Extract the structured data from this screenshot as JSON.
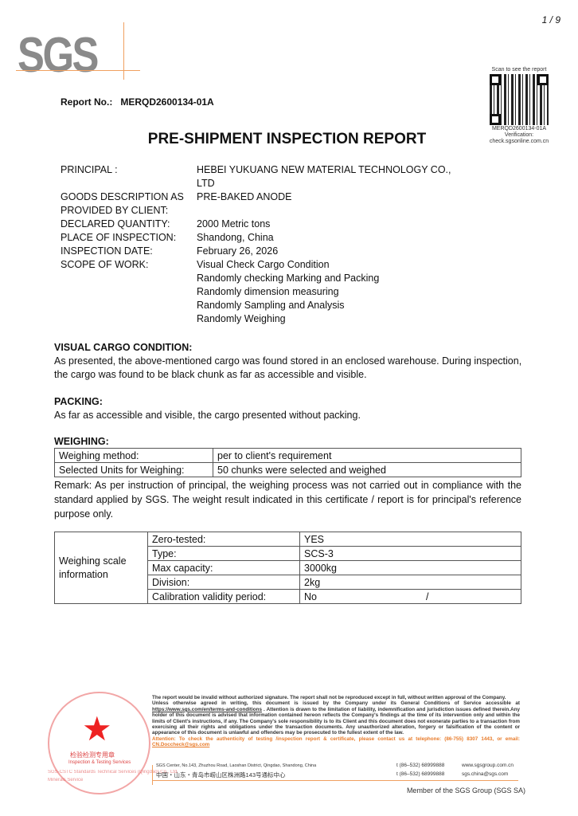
{
  "page_number": "1 / 9",
  "logo": "SGS",
  "report_no": {
    "label": "Report No.:",
    "value": "MERQD2600134-01A"
  },
  "qr": {
    "caption": "Scan to see the report",
    "code": "MERQD2600134-01A",
    "verification": "Verification:",
    "site": "check.sgsonline.com.cn"
  },
  "title": "PRE-SHIPMENT INSPECTION REPORT",
  "info": [
    {
      "label": "PRINCIPAL :",
      "value": "HEBEI YUKUANG NEW MATERIAL TECHNOLOGY CO., LTD"
    },
    {
      "label": "GOODS DESCRIPTION AS PROVIDED BY CLIENT:",
      "value": "PRE-BAKED ANODE"
    },
    {
      "label": "DECLARED QUANTITY:",
      "value": "2000 Metric tons"
    },
    {
      "label": "PLACE OF INSPECTION:",
      "value": "Shandong, China"
    },
    {
      "label": "INSPECTION DATE:",
      "value": "February 26, 2026"
    },
    {
      "label": "SCOPE OF WORK:",
      "value": "Visual Check Cargo Condition"
    },
    {
      "label": "",
      "value": "Randomly checking Marking and Packing"
    },
    {
      "label": "",
      "value": "Randomly dimension measuring"
    },
    {
      "label": "",
      "value": "Randomly Sampling and Analysis"
    },
    {
      "label": "",
      "value": "Randomly Weighing"
    }
  ],
  "visual": {
    "heading": "VISUAL CARGO CONDITION:",
    "text": "As presented, the above-mentioned cargo was found stored in an enclosed warehouse. During inspection, the cargo was found to be black chunk as far as accessible and visible."
  },
  "packing": {
    "heading": "PACKING:",
    "text": "As far as accessible and visible, the cargo presented without packing."
  },
  "weighing": {
    "heading": "WEIGHING:",
    "rows": [
      [
        "Weighing method:",
        "per to client's requirement"
      ],
      [
        "Selected Units for Weighing:",
        "50 chunks were selected and weighed"
      ]
    ],
    "remark": "Remark: As per instruction of principal, the weighing process was not carried out in compliance with the standard applied by SGS. The weight result indicated in this certificate / report is for principal's reference purpose only."
  },
  "scale": {
    "group_label": "Weighing scale information",
    "rows": [
      [
        "Zero-tested:",
        "YES",
        ""
      ],
      [
        "Type:",
        "SCS-3",
        ""
      ],
      [
        "Max capacity:",
        "3000kg",
        ""
      ],
      [
        "Division:",
        "2kg",
        ""
      ],
      [
        "Calibration validity period:",
        "No",
        "/"
      ]
    ]
  },
  "stamp": {
    "text": "通标标准技术服务（青岛）有限公司",
    "sub": "检验检测专用章",
    "en": "Inspection & Testing Services",
    "company": "SGS-CSTC Standards Technical Services (Qingdao) Co., Ltd.",
    "div": "Minerals Service"
  },
  "footer": {
    "disclaimer": "The report would be invalid without authorized signature. The report shall not be reproduced except in full, without written approval of the Company.",
    "conditions_pre": "Unless otherwise agreed in writing, this document is issued by the Company under its General Conditions of Service accessible at",
    "link": "https://www.sgs.com/en/terms-and-conditions",
    "conditions_post": ". Attention is drawn to the limitation of liability, indemnification and jurisdiction issues defined therein.Any holder of this document is advised that information contained hereon reflects the Company's findings at the time of its intervention only and within the limits of Client's instructions, if any. The Company's sole responsibility is to its Client and this document does not exonerate parties to a transaction from exercising all their rights and obligations under the transaction documents. Any unauthorized alteration, forgery or falsification of the content or appearance of this document is unlawful and offenders may be prosecuted to the fullest extent of the law.",
    "attention": "Attention: To check the authenticity of testing /inspection report & certificate, please contact us at telephone: (86-755) 8307 1443, or email:",
    "email": "CN.Doccheck@sgs.com",
    "address_en": "SGS Center, No.143, Zhuzhou Road, Laoshan District, Qingdao, Shandong, China",
    "address_cn": "中国・山东・青岛市崂山区株洲路143号通标中心",
    "tel1": "t (86–532) 68999888",
    "tel2": "t (86–532) 68999888",
    "web": "www.sgsgroup.com.cn",
    "mail": "sgs.china@sgs.com",
    "member": "Member of the SGS Group (SGS SA)"
  }
}
